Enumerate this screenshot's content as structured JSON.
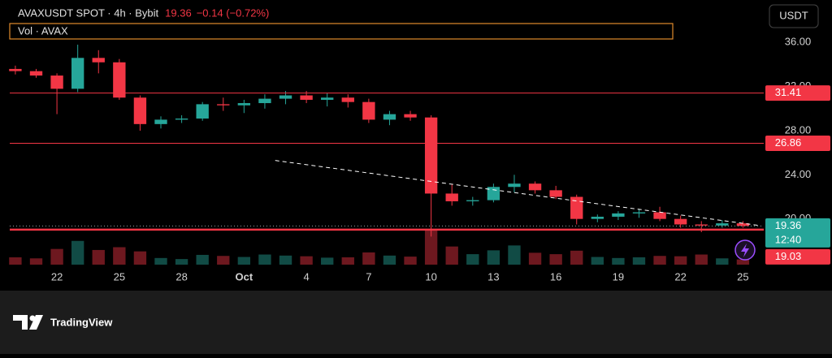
{
  "chart_data": {
    "type": "candlestick",
    "title": "AVAXUSDT SPOT · 4h · Bybit",
    "change": "−0.14 (−0.72%)",
    "volume_label": "Vol · AVAX",
    "currency": "USDT",
    "countdown": "12:40",
    "brand": "TradingView",
    "up_color": "#26a69a",
    "down_color": "#f23645",
    "x": [
      -2,
      -1,
      0,
      1,
      2,
      3,
      4,
      5,
      6,
      7,
      8,
      9,
      10,
      11,
      12,
      13,
      14,
      15,
      16,
      17,
      18,
      19,
      20,
      21,
      22,
      23,
      24,
      25,
      26,
      27,
      28,
      29,
      30,
      31,
      32,
      33
    ],
    "open": [
      33.6,
      33.4,
      33.0,
      31.8,
      34.6,
      34.2,
      31.0,
      28.6,
      29.0,
      29.1,
      30.4,
      30.3,
      30.5,
      30.9,
      31.2,
      30.8,
      31.0,
      30.6,
      29.0,
      29.5,
      29.2,
      22.3,
      21.6,
      21.7,
      22.9,
      23.2,
      22.6,
      22.0,
      20.0,
      20.2,
      20.5,
      20.6,
      20.0,
      19.5,
      19.4,
      19.6
    ],
    "high": [
      33.9,
      33.6,
      33.2,
      35.8,
      35.3,
      34.5,
      31.2,
      29.3,
      29.4,
      30.6,
      31.0,
      30.8,
      31.3,
      31.6,
      31.6,
      31.4,
      31.3,
      30.9,
      29.8,
      29.8,
      29.4,
      23.1,
      22.0,
      23.2,
      24.0,
      23.4,
      23.0,
      22.2,
      20.4,
      20.7,
      20.9,
      21.1,
      20.3,
      19.8,
      19.9,
      19.8
    ],
    "low": [
      33.1,
      32.8,
      29.5,
      31.5,
      33.2,
      30.8,
      28.0,
      28.2,
      28.7,
      28.9,
      29.8,
      29.6,
      30.0,
      30.4,
      30.5,
      30.2,
      30.1,
      28.7,
      28.5,
      28.9,
      18.4,
      21.2,
      21.2,
      21.5,
      22.4,
      22.3,
      21.8,
      19.5,
      19.7,
      19.9,
      20.1,
      19.8,
      19.2,
      18.8,
      19.2,
      19.2
    ],
    "close": [
      33.4,
      33.0,
      31.8,
      34.6,
      34.2,
      31.0,
      28.6,
      29.0,
      29.1,
      30.4,
      30.3,
      30.5,
      30.9,
      31.2,
      30.8,
      31.0,
      30.6,
      29.0,
      29.5,
      29.2,
      22.3,
      21.6,
      21.7,
      22.9,
      23.2,
      22.6,
      22.0,
      20.0,
      20.2,
      20.5,
      20.6,
      20.0,
      19.5,
      19.4,
      19.6,
      19.36
    ],
    "volume": [
      2.1,
      1.8,
      4.5,
      6.8,
      4.2,
      5.0,
      3.8,
      1.9,
      1.6,
      2.8,
      2.5,
      2.2,
      2.9,
      2.6,
      2.4,
      2.0,
      2.1,
      3.5,
      2.6,
      2.3,
      10.0,
      5.2,
      3.0,
      4.1,
      5.5,
      3.4,
      3.0,
      4.0,
      2.2,
      1.9,
      2.1,
      2.5,
      2.4,
      2.9,
      1.8,
      1.5
    ],
    "xlim": [
      -2.27,
      34
    ],
    "xticks": [
      {
        "value": 0,
        "label": "22"
      },
      {
        "value": 3,
        "label": "25"
      },
      {
        "value": 6,
        "label": "28"
      },
      {
        "value": 9,
        "label": "Oct"
      },
      {
        "value": 12,
        "label": "4"
      },
      {
        "value": 15,
        "label": "7"
      },
      {
        "value": 18,
        "label": "10"
      },
      {
        "value": 21,
        "label": "13"
      },
      {
        "value": 24,
        "label": "16"
      },
      {
        "value": 27,
        "label": "19"
      },
      {
        "value": 30,
        "label": "22"
      },
      {
        "value": 33,
        "label": "25"
      }
    ],
    "ylim": [
      15.56,
      39.85
    ],
    "yticks": [
      {
        "value": 20,
        "label": "20.00"
      },
      {
        "value": 24,
        "label": "24.00"
      },
      {
        "value": 28,
        "label": "28.00"
      },
      {
        "value": 32,
        "label": "32.00"
      },
      {
        "value": 36,
        "label": "36.00"
      }
    ],
    "price_lines": [
      {
        "value": 31.41,
        "color": "#f23645",
        "style": "solid"
      },
      {
        "value": 26.86,
        "color": "#f23645",
        "style": "solid"
      },
      {
        "value": 19.36,
        "color": "#26a69a",
        "style": "dotted"
      },
      {
        "value": 19.03,
        "color": "#f23645",
        "style": "thick"
      }
    ],
    "trendline": {
      "x": [
        10.5,
        33.8
      ],
      "y": [
        25.3,
        19.4
      ],
      "color": "#ffffff"
    }
  }
}
